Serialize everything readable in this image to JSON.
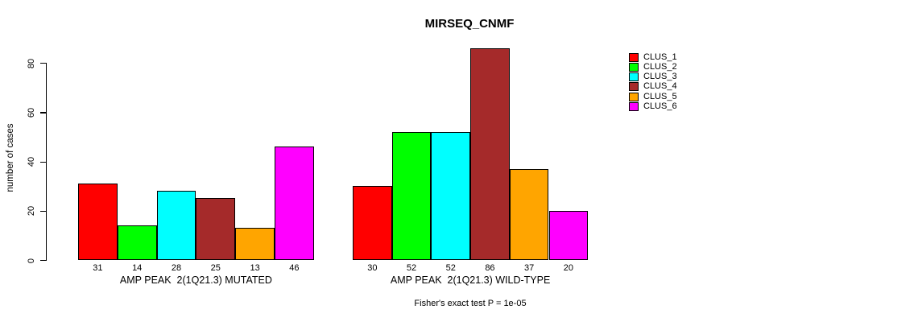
{
  "chart_data": {
    "type": "bar",
    "title": "MIRSEQ_CNMF",
    "ylabel": "number of cases",
    "xlabel": "",
    "annotation": "Fisher's exact test P = 1e-05",
    "yticks": [
      0,
      20,
      40,
      60,
      80
    ],
    "ylim": [
      0,
      86
    ],
    "grid": false,
    "legend_position": "right",
    "background": "#FFFFFF",
    "text_color": "#000000",
    "bar_outline_color": "#000000",
    "categories": [
      "AMP PEAK  2(1Q21.3) MUTATED",
      "AMP PEAK  2(1Q21.3) WILD-TYPE"
    ],
    "series": [
      {
        "name": "CLUS_1",
        "color": "#FF0000",
        "values": [
          31,
          30
        ]
      },
      {
        "name": "CLUS_2",
        "color": "#00FF00",
        "values": [
          14,
          52
        ]
      },
      {
        "name": "CLUS_3",
        "color": "#00FFFF",
        "values": [
          28,
          52
        ]
      },
      {
        "name": "CLUS_4",
        "color": "#A52A2A",
        "values": [
          25,
          86
        ]
      },
      {
        "name": "CLUS_5",
        "color": "#FFA500",
        "values": [
          13,
          37
        ]
      },
      {
        "name": "CLUS_6",
        "color": "#FF00FF",
        "values": [
          46,
          20
        ]
      }
    ],
    "show_value_labels": true
  }
}
